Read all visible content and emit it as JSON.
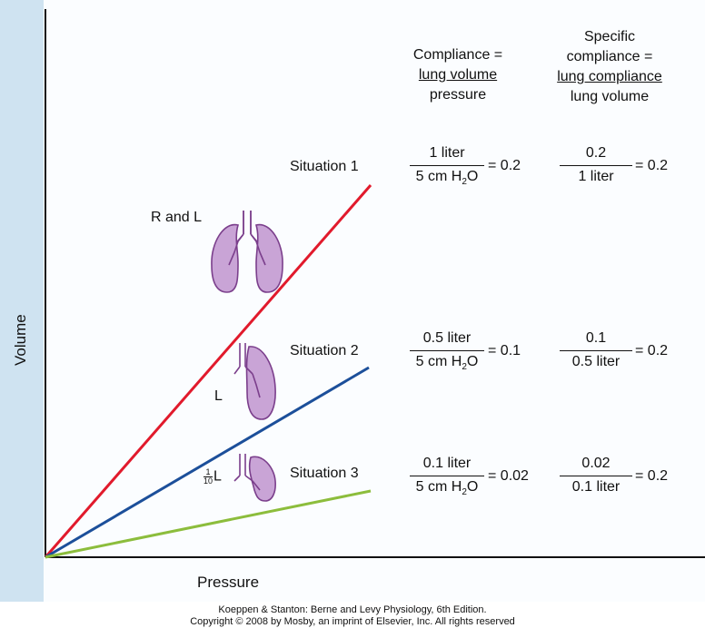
{
  "axes": {
    "ylabel": "Volume",
    "xlabel": "Pressure"
  },
  "headers": {
    "compliance": [
      "Compliance =",
      "lung volume",
      "pressure"
    ],
    "specific": [
      "Specific",
      "compliance =",
      "lung compliance",
      "lung volume"
    ]
  },
  "situations": [
    {
      "label": "Situation 1",
      "lung_label": "R and L",
      "color": "#e11a2c",
      "comp_num": "1 liter",
      "comp_den_pre": "5 cm H",
      "comp_den_sub": "2",
      "comp_den_post": "O",
      "comp_val": "= 0.2",
      "spec_num": "0.2",
      "spec_den": "1 liter",
      "spec_val": "= 0.2"
    },
    {
      "label": "Situation 2",
      "lung_label": "L",
      "color": "#1c4f9a",
      "comp_num": "0.5 liter",
      "comp_den_pre": "5 cm H",
      "comp_den_sub": "2",
      "comp_den_post": "O",
      "comp_val": "= 0.1",
      "spec_num": "0.1",
      "spec_den": "0.5 liter",
      "spec_val": "= 0.2"
    },
    {
      "label": "Situation 3",
      "lung_label_num": "1",
      "lung_label_den": "10",
      "lung_label_suffix": "L",
      "color": "#8cbd3c",
      "comp_num": "0.1 liter",
      "comp_den_pre": "5 cm H",
      "comp_den_sub": "2",
      "comp_den_post": "O",
      "comp_val": "= 0.02",
      "spec_num": "0.02",
      "spec_den": "0.1 liter",
      "spec_val": "= 0.2"
    }
  ],
  "footer": {
    "line1": "Koeppen & Stanton: Berne and Levy Physiology, 6th Edition.",
    "line2": "Copyright © 2008 by Mosby, an imprint of Elsevier, Inc. All rights reserved"
  },
  "lung_fill": "#c9a4d6",
  "lung_stroke": "#7b3f8c"
}
